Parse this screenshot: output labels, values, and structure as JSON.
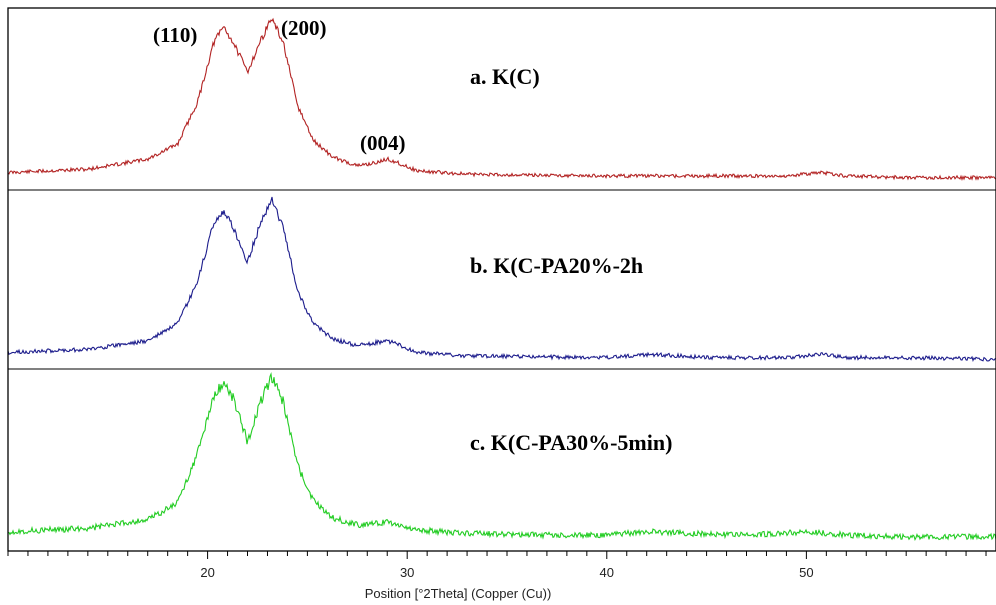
{
  "chart_data": {
    "type": "line",
    "xlabel": "Position [°2Theta] (Copper (Cu))",
    "ylabel": "",
    "xlim": [
      10,
      59.5
    ],
    "x_ticks": [
      20,
      30,
      40,
      50
    ],
    "grid": false,
    "legend": "none",
    "series": [
      {
        "name": "a. K(C)",
        "color": "#b22222",
        "points": [
          [
            10,
            0.08
          ],
          [
            14,
            0.1
          ],
          [
            17,
            0.16
          ],
          [
            18.5,
            0.25
          ],
          [
            19.5,
            0.5
          ],
          [
            20.3,
            0.85
          ],
          [
            20.8,
            0.95
          ],
          [
            21.3,
            0.85
          ],
          [
            22.0,
            0.68
          ],
          [
            22.6,
            0.85
          ],
          [
            23.2,
            1.0
          ],
          [
            23.8,
            0.85
          ],
          [
            24.5,
            0.48
          ],
          [
            25.3,
            0.27
          ],
          [
            26.3,
            0.17
          ],
          [
            27.5,
            0.12
          ],
          [
            28.5,
            0.14
          ],
          [
            29.0,
            0.16
          ],
          [
            29.5,
            0.14
          ],
          [
            30.5,
            0.09
          ],
          [
            33,
            0.07
          ],
          [
            40,
            0.06
          ],
          [
            45,
            0.06
          ],
          [
            49,
            0.06
          ],
          [
            50.8,
            0.08
          ],
          [
            52,
            0.06
          ],
          [
            55,
            0.05
          ],
          [
            59.5,
            0.05
          ]
        ]
      },
      {
        "name": "b. K(C-PA20%-2h",
        "color": "#1c1c8c",
        "points": [
          [
            10,
            0.08
          ],
          [
            14,
            0.1
          ],
          [
            17,
            0.15
          ],
          [
            18.5,
            0.25
          ],
          [
            19.5,
            0.5
          ],
          [
            20.3,
            0.85
          ],
          [
            20.8,
            0.92
          ],
          [
            21.3,
            0.82
          ],
          [
            22.0,
            0.62
          ],
          [
            22.6,
            0.83
          ],
          [
            23.2,
            1.0
          ],
          [
            23.8,
            0.82
          ],
          [
            24.5,
            0.45
          ],
          [
            25.3,
            0.25
          ],
          [
            26.3,
            0.16
          ],
          [
            27.5,
            0.12
          ],
          [
            28.5,
            0.14
          ],
          [
            29.0,
            0.15
          ],
          [
            29.5,
            0.13
          ],
          [
            30.5,
            0.08
          ],
          [
            33,
            0.06
          ],
          [
            40,
            0.05
          ],
          [
            42.2,
            0.07
          ],
          [
            45,
            0.05
          ],
          [
            49,
            0.05
          ],
          [
            50.8,
            0.07
          ],
          [
            52,
            0.05
          ],
          [
            55,
            0.05
          ],
          [
            59.5,
            0.04
          ]
        ]
      },
      {
        "name": "c. K(C-PA30%-5min)",
        "color": "#22cc22",
        "points": [
          [
            10,
            0.09
          ],
          [
            14,
            0.11
          ],
          [
            17,
            0.16
          ],
          [
            18.5,
            0.26
          ],
          [
            19.5,
            0.55
          ],
          [
            20.3,
            0.88
          ],
          [
            20.8,
            0.97
          ],
          [
            21.3,
            0.87
          ],
          [
            22.0,
            0.62
          ],
          [
            22.6,
            0.84
          ],
          [
            23.2,
            1.0
          ],
          [
            23.8,
            0.85
          ],
          [
            24.5,
            0.48
          ],
          [
            25.3,
            0.27
          ],
          [
            26.3,
            0.17
          ],
          [
            27.5,
            0.13
          ],
          [
            28.5,
            0.14
          ],
          [
            29.0,
            0.15
          ],
          [
            29.5,
            0.13
          ],
          [
            30.5,
            0.1
          ],
          [
            33,
            0.08
          ],
          [
            37,
            0.07
          ],
          [
            40,
            0.07
          ],
          [
            42.2,
            0.09
          ],
          [
            44,
            0.08
          ],
          [
            47,
            0.07
          ],
          [
            50,
            0.09
          ],
          [
            52,
            0.07
          ],
          [
            55,
            0.06
          ],
          [
            59.5,
            0.06
          ]
        ]
      }
    ],
    "series_labels": [
      "a. K(C)",
      "b. K(C-PA20%-2h",
      "c. K(C-PA30%-5min)"
    ],
    "annotations": [
      {
        "text": "(110)",
        "x": 20.8
      },
      {
        "text": "(200)",
        "x": 23.2
      },
      {
        "text": "(004)",
        "x": 29.0
      }
    ]
  }
}
